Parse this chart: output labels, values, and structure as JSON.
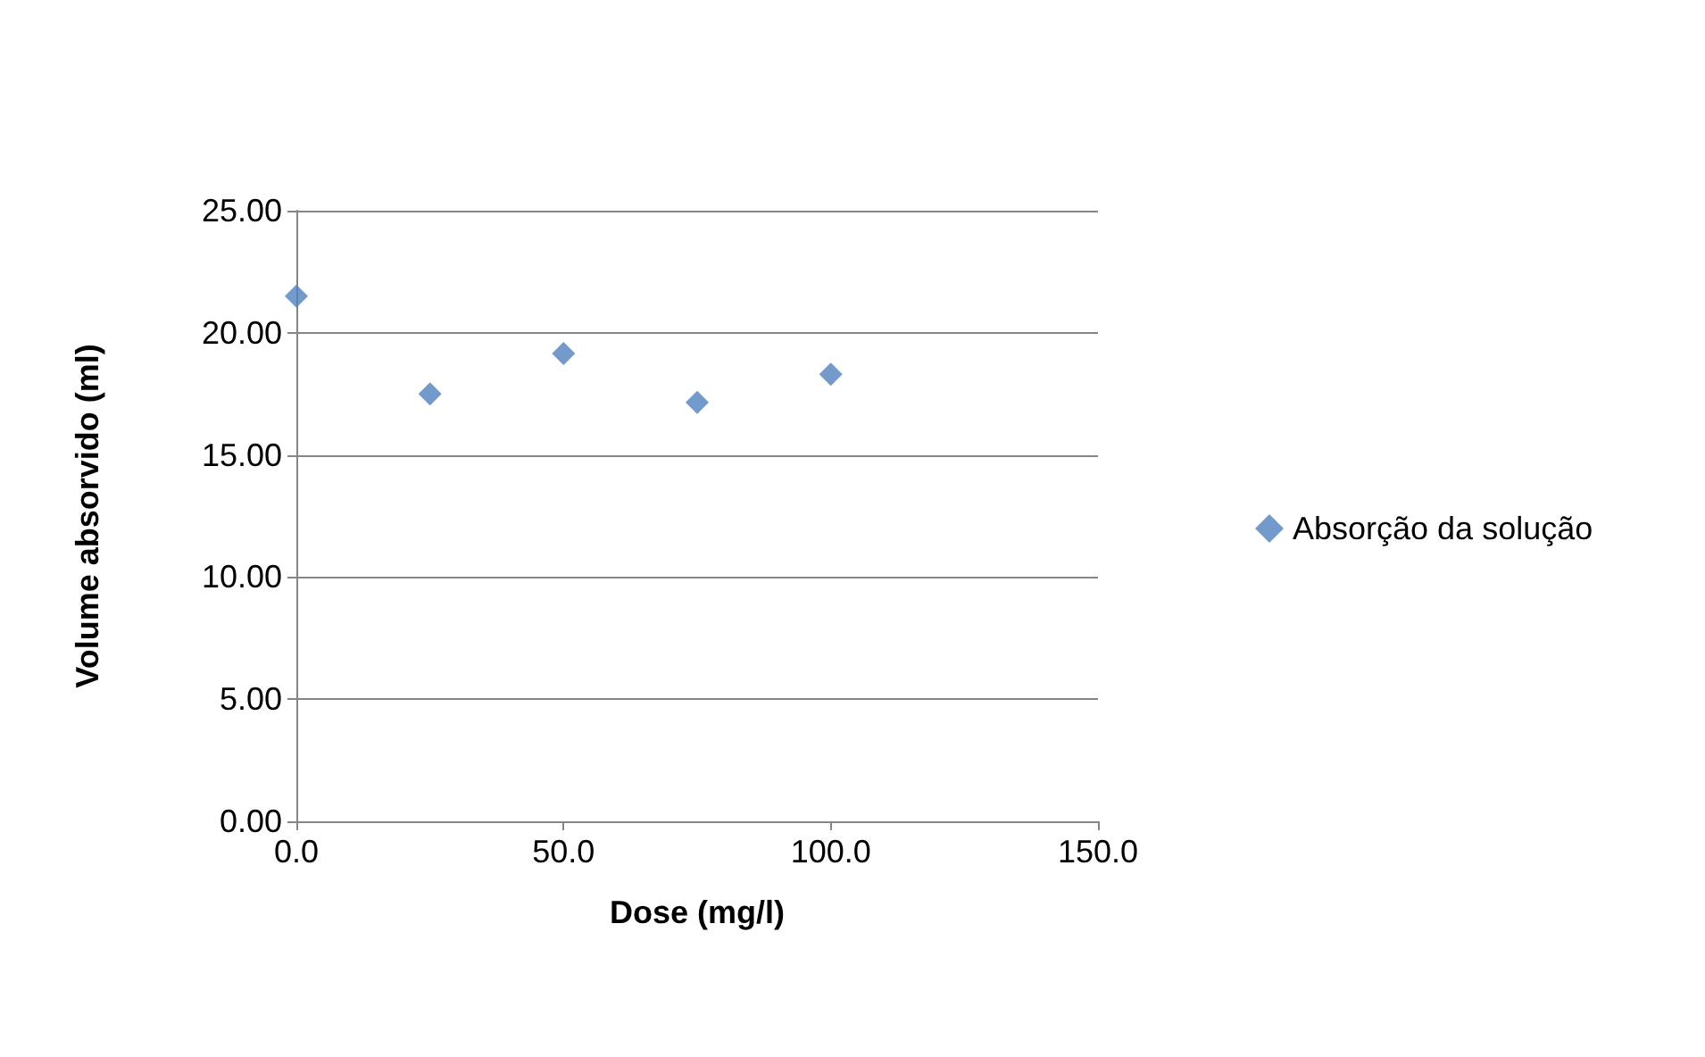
{
  "chart_data": {
    "type": "scatter",
    "xlabel": "Dose (mg/l)",
    "ylabel": "Volume absorvido (ml)",
    "x": [
      0,
      25,
      50,
      75,
      100
    ],
    "series": [
      {
        "name": "Absorção da solução",
        "color": "#4f81bd",
        "values": [
          21.5,
          17.5,
          19.15,
          17.15,
          18.3
        ]
      }
    ],
    "xlim": [
      0,
      150
    ],
    "xticks": [
      {
        "value": 0,
        "label": "0.0"
      },
      {
        "value": 50,
        "label": "50.0"
      },
      {
        "value": 100,
        "label": "100.0"
      },
      {
        "value": 150,
        "label": "150.0"
      }
    ],
    "ylim": [
      0,
      25
    ],
    "yticks": [
      {
        "value": 0,
        "label": "0.00"
      },
      {
        "value": 5,
        "label": "5.00"
      },
      {
        "value": 10,
        "label": "10.00"
      },
      {
        "value": 15,
        "label": "15.00"
      },
      {
        "value": 20,
        "label": "20.00"
      },
      {
        "value": 25,
        "label": "25.00"
      }
    ],
    "grid": "y",
    "legend": "right",
    "marker": "diamond"
  }
}
